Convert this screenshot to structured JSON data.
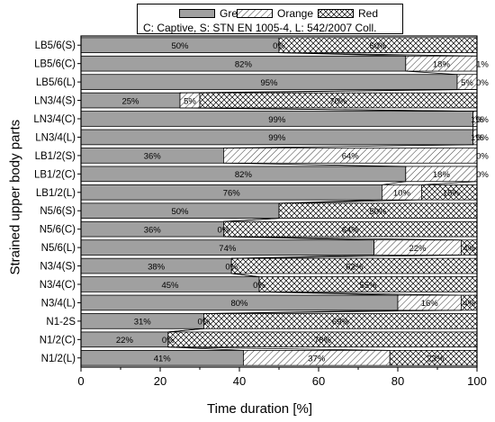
{
  "chart_data": {
    "type": "bar",
    "orientation": "horizontal",
    "stacked": true,
    "xlabel": "Time duration [%]",
    "ylabel": "Strained upper body parts",
    "xlim": [
      0,
      100
    ],
    "xticks": [
      "0",
      "20",
      "40",
      "60",
      "80",
      "100"
    ],
    "categories": [
      "LB5/6(S)",
      "LB5/6(C)",
      "LB5/6(L)",
      "LN3/4(S)",
      "LN3/4(C)",
      "LN3/4(L)",
      "LB1/2(S)",
      "LB1/2(C)",
      "LB1/2(L)",
      "N5/6(S)",
      "N5/6(C)",
      "N5/6(L)",
      "N3/4(S)",
      "N3/4(C)",
      "N3/4(L)",
      "N1-2S",
      "N1/2(C)",
      "N1/2(L)"
    ],
    "series": [
      {
        "name": "Green",
        "pattern": "solid",
        "color": "#a0a0a0",
        "values": [
          50,
          82,
          95,
          25,
          99,
          99,
          36,
          82,
          76,
          50,
          36,
          74,
          38,
          45,
          80,
          31,
          22,
          41
        ]
      },
      {
        "name": "Orange",
        "pattern": "diagonal-lines",
        "color": "#ffffff",
        "values": [
          0,
          18,
          5,
          5,
          1,
          1,
          64,
          18,
          10,
          0,
          0,
          22,
          0,
          0,
          16,
          0,
          0,
          37
        ]
      },
      {
        "name": "Red",
        "pattern": "crosshatch",
        "color": "#ffffff",
        "values": [
          50,
          1,
          0,
          70,
          0,
          0,
          0,
          0,
          15,
          50,
          64,
          4,
          62,
          55,
          4,
          69,
          78,
          23
        ]
      }
    ],
    "labels": [
      [
        "50%",
        "0%",
        "50%"
      ],
      [
        "82%",
        "18%",
        "1%"
      ],
      [
        "95%",
        "5%",
        "0%"
      ],
      [
        "25%",
        "5%",
        "70%"
      ],
      [
        "99%",
        "1%",
        "0%"
      ],
      [
        "99%",
        "1%",
        "0%"
      ],
      [
        "36%",
        "64%",
        "0%"
      ],
      [
        "82%",
        "18%",
        "0%"
      ],
      [
        "76%",
        "10%",
        "15%"
      ],
      [
        "50%",
        "",
        "50%"
      ],
      [
        "36%",
        "0%",
        "64%"
      ],
      [
        "74%",
        "22%",
        "4%"
      ],
      [
        "38%",
        "0%",
        "62%"
      ],
      [
        "45%",
        "0%",
        "55%"
      ],
      [
        "80%",
        "16%",
        "4%"
      ],
      [
        "31%",
        "0%",
        "69%"
      ],
      [
        "22%",
        "0%",
        "78%"
      ],
      [
        "41%",
        "37%",
        "23%"
      ]
    ],
    "legend": {
      "placement": "top-center",
      "entries": [
        "Green",
        "Orange",
        "Red"
      ],
      "note": "C: Captive, S: STN EN 1005-4, L: 542/2007 Coll."
    },
    "bar_fill_color": "#a0a0a0",
    "grid": false
  }
}
